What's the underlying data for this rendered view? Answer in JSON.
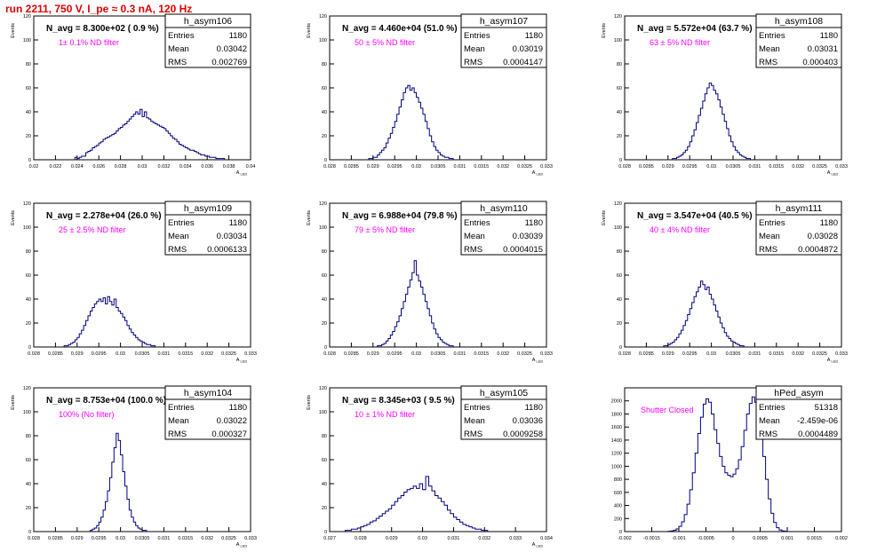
{
  "run_title": "run 2211,   750 V, I_pe ≈ 0.3 nA, 120 Hz",
  "chart_data": [
    {
      "type": "bar",
      "histname": "h_asym106",
      "navg": "N_avg = 8.300e+02 ( 0.9 %)",
      "filter": "1± 0.1% ND filter",
      "stats": {
        "Entries": "1180",
        "Mean": "0.03042",
        "RMS": "0.002769"
      },
      "ylabel": "Events",
      "xlabel": "A_{LED}",
      "xlim": [
        0.02,
        0.04
      ],
      "ylim": [
        0,
        120
      ],
      "xticks": [
        0.02,
        0.022,
        0.024,
        0.026,
        0.028,
        0.03,
        0.032,
        0.034,
        0.036,
        0.038,
        0.04
      ],
      "xticklabels": [
        "0.02",
        "0.022",
        "0.024",
        "0.026",
        "0.028",
        "0.03",
        "0.032",
        "0.034",
        "0.036",
        "0.038",
        "0.04"
      ],
      "yticks": [
        0,
        20,
        40,
        60,
        80,
        100,
        120
      ],
      "yticklabels": [
        "0",
        "20",
        "40",
        "60",
        "80",
        "100",
        "120"
      ],
      "bins": {
        "start": 0.0238,
        "width": 0.0002,
        "values": [
          2,
          1,
          2,
          3,
          3,
          6,
          7,
          8,
          10,
          11,
          12,
          14,
          15,
          17,
          18,
          19,
          20,
          21,
          22,
          24,
          26,
          27,
          29,
          30,
          32,
          34,
          36,
          38,
          40,
          38,
          42,
          36,
          40,
          35,
          34,
          32,
          31,
          30,
          29,
          28,
          27,
          26,
          24,
          22,
          20,
          18,
          17,
          15,
          13,
          12,
          11,
          10,
          9,
          8,
          8,
          7,
          6,
          5,
          4,
          4,
          3,
          3,
          2,
          2,
          2,
          1,
          1,
          1,
          1
        ]
      }
    },
    {
      "type": "bar",
      "histname": "h_asym107",
      "navg": "N_avg = 4.460e+04 (51.0 %)",
      "filter": "50 ± 5% ND filter",
      "stats": {
        "Entries": "1180",
        "Mean": "0.03019",
        "RMS": "0.0004147"
      },
      "ylabel": "Events",
      "xlabel": "A_{LED}",
      "xlim": [
        0.028,
        0.033
      ],
      "ylim": [
        0,
        120
      ],
      "xticks": [
        0.028,
        0.0285,
        0.029,
        0.0295,
        0.03,
        0.0305,
        0.031,
        0.0315,
        0.032,
        0.0325,
        0.033
      ],
      "xticklabels": [
        "0.028",
        "0.0285",
        "0.029",
        "0.0295",
        "0.03",
        "0.0305",
        "0.031",
        "0.0315",
        "0.032",
        "0.0325",
        "0.033"
      ],
      "yticks": [
        0,
        20,
        40,
        60,
        80,
        100,
        120
      ],
      "yticklabels": [
        "0",
        "20",
        "40",
        "60",
        "80",
        "100",
        "120"
      ],
      "bins": {
        "start": 0.0289,
        "width": 5e-05,
        "values": [
          1,
          1,
          2,
          2,
          4,
          6,
          8,
          10,
          14,
          18,
          22,
          27,
          32,
          38,
          44,
          50,
          56,
          60,
          62,
          58,
          60,
          56,
          52,
          48,
          43,
          38,
          32,
          26,
          20,
          15,
          11,
          8,
          6,
          4,
          3,
          2,
          2,
          1,
          1
        ]
      }
    },
    {
      "type": "bar",
      "histname": "h_asym108",
      "navg": "N_avg = 5.572e+04 (63.7 %)",
      "filter": "63 ± 5% ND filter",
      "stats": {
        "Entries": "1180",
        "Mean": "0.03031",
        "RMS": "0.000403"
      },
      "ylabel": "Events",
      "xlabel": "A_{LED}",
      "xlim": [
        0.028,
        0.033
      ],
      "ylim": [
        0,
        120
      ],
      "xticks": [
        0.028,
        0.0285,
        0.029,
        0.0295,
        0.03,
        0.0305,
        0.031,
        0.0315,
        0.032,
        0.0325,
        0.033
      ],
      "xticklabels": [
        "0.028",
        "0.0285",
        "0.029",
        "0.0295",
        "0.03",
        "0.0305",
        "0.031",
        "0.0315",
        "0.032",
        "0.0325",
        "0.033"
      ],
      "yticks": [
        0,
        20,
        40,
        60,
        80,
        100,
        120
      ],
      "yticklabels": [
        "0",
        "20",
        "40",
        "60",
        "80",
        "100",
        "120"
      ],
      "bins": {
        "start": 0.0291,
        "width": 5e-05,
        "values": [
          1,
          1,
          2,
          3,
          4,
          6,
          8,
          11,
          15,
          20,
          25,
          31,
          37,
          43,
          49,
          55,
          60,
          64,
          62,
          58,
          55,
          50,
          44,
          38,
          32,
          26,
          20,
          15,
          11,
          8,
          6,
          4,
          3,
          2,
          1,
          1
        ]
      }
    },
    {
      "type": "bar",
      "histname": "h_asym109",
      "navg": "N_avg = 2.278e+04 (26.0 %)",
      "filter": "25 ± 2.5% ND filter",
      "stats": {
        "Entries": "1180",
        "Mean": "0.03034",
        "RMS": "0.0006133"
      },
      "ylabel": "Events",
      "xlabel": "A_{LED}",
      "xlim": [
        0.028,
        0.033
      ],
      "ylim": [
        0,
        120
      ],
      "xticks": [
        0.028,
        0.0285,
        0.029,
        0.0295,
        0.03,
        0.0305,
        0.031,
        0.0315,
        0.032,
        0.0325,
        0.033
      ],
      "xticklabels": [
        "0.028",
        "0.0285",
        "0.029",
        "0.0295",
        "0.03",
        "0.0305",
        "0.031",
        "0.0315",
        "0.032",
        "0.0325",
        "0.033"
      ],
      "yticks": [
        0,
        20,
        40,
        60,
        80,
        100,
        120
      ],
      "yticklabels": [
        "0",
        "20",
        "40",
        "60",
        "80",
        "100",
        "120"
      ],
      "bins": {
        "start": 0.0287,
        "width": 5e-05,
        "values": [
          1,
          1,
          2,
          3,
          4,
          6,
          8,
          11,
          14,
          18,
          22,
          26,
          30,
          33,
          36,
          38,
          40,
          38,
          41,
          36,
          42,
          38,
          35,
          40,
          33,
          30,
          28,
          25,
          22,
          18,
          15,
          12,
          10,
          8,
          6,
          5,
          4,
          3,
          2,
          2,
          1,
          1
        ]
      }
    },
    {
      "type": "bar",
      "histname": "h_asym110",
      "navg": "N_avg = 6.988e+04 (79.8 %)",
      "filter": "79 ± 5% ND filter",
      "stats": {
        "Entries": "1180",
        "Mean": "0.03039",
        "RMS": "0.0004015"
      },
      "ylabel": "Events",
      "xlabel": "A_{LED}",
      "xlim": [
        0.028,
        0.033
      ],
      "ylim": [
        0,
        120
      ],
      "xticks": [
        0.028,
        0.0285,
        0.029,
        0.0295,
        0.03,
        0.0305,
        0.031,
        0.0315,
        0.032,
        0.0325,
        0.033
      ],
      "xticklabels": [
        "0.028",
        "0.0285",
        "0.029",
        "0.0295",
        "0.03",
        "0.0305",
        "0.031",
        "0.0315",
        "0.032",
        "0.0325",
        "0.033"
      ],
      "yticks": [
        0,
        20,
        40,
        60,
        80,
        100,
        120
      ],
      "yticklabels": [
        "0",
        "20",
        "40",
        "60",
        "80",
        "100",
        "120"
      ],
      "bins": {
        "start": 0.0291,
        "width": 5e-05,
        "values": [
          1,
          1,
          2,
          3,
          5,
          7,
          10,
          13,
          17,
          21,
          26,
          32,
          38,
          44,
          50,
          56,
          62,
          72,
          60,
          55,
          50,
          44,
          38,
          32,
          26,
          20,
          15,
          11,
          8,
          6,
          4,
          3,
          2,
          1,
          1
        ]
      }
    },
    {
      "type": "bar",
      "histname": "h_asym111",
      "navg": "N_avg = 3.547e+04 (40.5 %)",
      "filter": "40 ± 4% ND filter",
      "stats": {
        "Entries": "1180",
        "Mean": "0.03028",
        "RMS": "0.0004872"
      },
      "ylabel": "Events",
      "xlabel": "A_{LED}",
      "xlim": [
        0.028,
        0.033
      ],
      "ylim": [
        0,
        120
      ],
      "xticks": [
        0.028,
        0.0285,
        0.029,
        0.0295,
        0.03,
        0.0305,
        0.031,
        0.0315,
        0.032,
        0.0325,
        0.033
      ],
      "xticklabels": [
        "0.028",
        "0.0285",
        "0.029",
        "0.0295",
        "0.03",
        "0.0305",
        "0.031",
        "0.0315",
        "0.032",
        "0.0325",
        "0.033"
      ],
      "yticks": [
        0,
        20,
        40,
        60,
        80,
        100,
        120
      ],
      "yticklabels": [
        "0",
        "20",
        "40",
        "60",
        "80",
        "100",
        "120"
      ],
      "bins": {
        "start": 0.0289,
        "width": 5e-05,
        "values": [
          1,
          1,
          2,
          3,
          4,
          6,
          8,
          11,
          14,
          18,
          22,
          27,
          32,
          37,
          42,
          46,
          50,
          55,
          52,
          48,
          50,
          44,
          40,
          35,
          30,
          25,
          20,
          16,
          12,
          9,
          7,
          5,
          4,
          3,
          2,
          1,
          1
        ]
      }
    },
    {
      "type": "bar",
      "histname": "h_asym104",
      "navg": "N_avg = 8.753e+04 (100.0 %)",
      "filter": "100% (No filter)",
      "stats": {
        "Entries": "1180",
        "Mean": "0.03022",
        "RMS": "0.000327"
      },
      "ylabel": "Events",
      "xlabel": "A_{LED}",
      "xlim": [
        0.028,
        0.033
      ],
      "ylim": [
        0,
        120
      ],
      "xticks": [
        0.028,
        0.0285,
        0.029,
        0.0295,
        0.03,
        0.0305,
        0.031,
        0.0315,
        0.032,
        0.0325,
        0.033
      ],
      "xticklabels": [
        "0.028",
        "0.0285",
        "0.029",
        "0.0295",
        "0.03",
        "0.0305",
        "0.031",
        "0.0315",
        "0.032",
        "0.0325",
        "0.033"
      ],
      "yticks": [
        0,
        20,
        40,
        60,
        80,
        100,
        120
      ],
      "yticklabels": [
        "0",
        "20",
        "40",
        "60",
        "80",
        "100",
        "120"
      ],
      "bins": {
        "start": 0.0293,
        "width": 5e-05,
        "values": [
          1,
          2,
          3,
          5,
          8,
          12,
          18,
          25,
          34,
          45,
          58,
          70,
          82,
          76,
          64,
          50,
          38,
          27,
          18,
          12,
          8,
          5,
          3,
          2,
          1,
          1
        ]
      }
    },
    {
      "type": "bar",
      "histname": "h_asym105",
      "navg": "N_avg = 8.345e+03 ( 9.5 %)",
      "filter": "10 ± 1% ND filter",
      "stats": {
        "Entries": "1180",
        "Mean": "0.03036",
        "RMS": "0.0009258"
      },
      "ylabel": "Events",
      "xlabel": "A_{LED}",
      "xlim": [
        0.027,
        0.034
      ],
      "ylim": [
        0,
        120
      ],
      "xticks": [
        0.027,
        0.028,
        0.029,
        0.03,
        0.031,
        0.032,
        0.033,
        0.034
      ],
      "xticklabels": [
        "0.027",
        "0.028",
        "0.029",
        "0.03",
        "0.031",
        "0.032",
        "0.033",
        "0.034"
      ],
      "yticks": [
        0,
        20,
        40,
        60,
        80,
        100,
        120
      ],
      "yticklabels": [
        "0",
        "20",
        "40",
        "60",
        "80",
        "100",
        "120"
      ],
      "bins": {
        "start": 0.0275,
        "width": 0.0001,
        "values": [
          1,
          1,
          2,
          2,
          3,
          4,
          5,
          6,
          8,
          9,
          11,
          13,
          15,
          17,
          19,
          22,
          25,
          28,
          30,
          33,
          35,
          36,
          38,
          36,
          40,
          35,
          46,
          38,
          34,
          30,
          28,
          25,
          22,
          18,
          15,
          12,
          10,
          8,
          6,
          5,
          4,
          3,
          2,
          2,
          1,
          1
        ]
      }
    },
    {
      "type": "bar",
      "histname": "hPed_asym",
      "navg": "",
      "filter": "Shutter Closed",
      "stats": {
        "Entries": "51318",
        "Mean": "-2.459e-06",
        "RMS": "0.0004489"
      },
      "ylabel": "",
      "xlabel": "",
      "xlim": [
        -0.002,
        0.002
      ],
      "ylim": [
        0,
        2200
      ],
      "xticks": [
        -0.002,
        -0.0015,
        -0.001,
        -0.0005,
        0,
        0.0005,
        0.001,
        0.0015,
        0.002
      ],
      "xticklabels": [
        "-0.002",
        "-0.0015",
        "-0.001",
        "-0.0005",
        "0",
        "0.0005",
        "0.001",
        "0.0015",
        "0.002"
      ],
      "yticks": [
        0,
        200,
        400,
        600,
        800,
        1000,
        1200,
        1400,
        1600,
        1800,
        2000
      ],
      "yticklabels": [
        "0",
        "200",
        "400",
        "600",
        "800",
        "1000",
        "1200",
        "1400",
        "1600",
        "1800",
        "2000"
      ],
      "bins": {
        "start": -0.0012,
        "width": 5e-05,
        "values": [
          5,
          10,
          20,
          40,
          80,
          150,
          260,
          420,
          640,
          900,
          1200,
          1500,
          1750,
          1950,
          2030,
          1980,
          1800,
          1560,
          1350,
          1150,
          1000,
          900,
          860,
          840,
          880,
          960,
          1100,
          1300,
          1550,
          1800,
          1960,
          2060,
          1980,
          1780,
          1500,
          1150,
          800,
          500,
          280,
          140,
          60,
          25,
          10,
          5
        ]
      }
    }
  ]
}
